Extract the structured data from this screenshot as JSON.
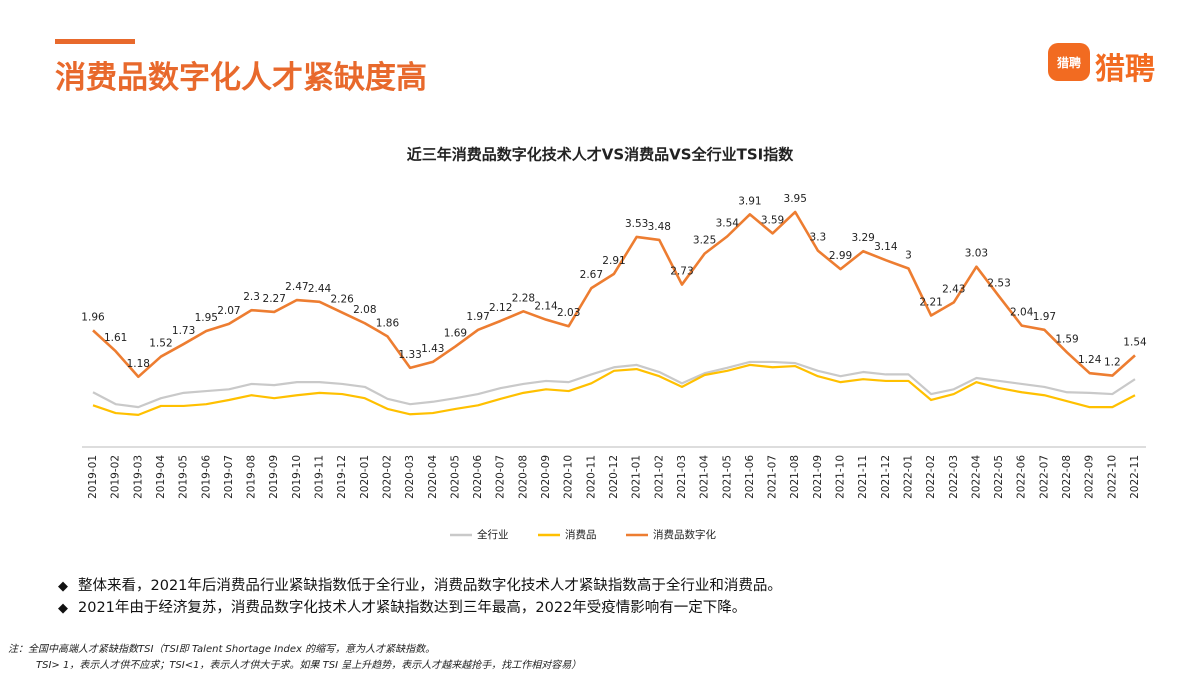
{
  "header": {
    "title": "消费品数字化人才紧缺度高"
  },
  "logo": {
    "icon_text": "猎聘",
    "brand": "猎聘"
  },
  "chart_data": {
    "type": "line",
    "title": "近三年消费品数字化技术人才VS消费品VS全行业TSI指数",
    "categories": [
      "2019-01",
      "2019-02",
      "2019-03",
      "2019-04",
      "2019-05",
      "2019-06",
      "2019-07",
      "2019-08",
      "2019-09",
      "2019-10",
      "2019-11",
      "2019-12",
      "2020-01",
      "2020-02",
      "2020-03",
      "2020-04",
      "2020-05",
      "2020-06",
      "2020-07",
      "2020-08",
      "2020-09",
      "2020-10",
      "2020-11",
      "2020-12",
      "2021-01",
      "2021-02",
      "2021-03",
      "2021-04",
      "2021-05",
      "2021-06",
      "2021-07",
      "2021-08",
      "2021-09",
      "2021-10",
      "2021-11",
      "2021-12",
      "2022-01",
      "2022-02",
      "2022-03",
      "2022-04",
      "2022-05",
      "2022-06",
      "2022-07",
      "2022-08",
      "2022-09",
      "2022-10",
      "2022-11"
    ],
    "ylim": [
      0,
      4
    ],
    "legend": "bottom",
    "series": [
      {
        "name": "全行业",
        "color": "#C9C9C9",
        "values": [
          0.92,
          0.72,
          0.67,
          0.82,
          0.91,
          0.94,
          0.97,
          1.06,
          1.04,
          1.09,
          1.09,
          1.06,
          1.01,
          0.81,
          0.72,
          0.76,
          0.82,
          0.89,
          0.99,
          1.06,
          1.11,
          1.09,
          1.22,
          1.34,
          1.38,
          1.26,
          1.07,
          1.24,
          1.33,
          1.43,
          1.43,
          1.41,
          1.28,
          1.19,
          1.26,
          1.22,
          1.22,
          0.89,
          0.97,
          1.16,
          1.11,
          1.06,
          1.01,
          0.92,
          0.91,
          0.89,
          1.14
        ]
      },
      {
        "name": "消费品",
        "color": "#FFC000",
        "values": [
          0.7,
          0.57,
          0.54,
          0.69,
          0.69,
          0.72,
          0.79,
          0.87,
          0.82,
          0.87,
          0.91,
          0.89,
          0.82,
          0.64,
          0.55,
          0.57,
          0.64,
          0.7,
          0.81,
          0.91,
          0.97,
          0.94,
          1.07,
          1.28,
          1.31,
          1.19,
          1.01,
          1.21,
          1.28,
          1.38,
          1.34,
          1.36,
          1.19,
          1.09,
          1.14,
          1.11,
          1.11,
          0.79,
          0.89,
          1.09,
          0.99,
          0.92,
          0.87,
          0.77,
          0.67,
          0.67,
          0.87
        ]
      },
      {
        "name": "消费品数字化",
        "color": "#ED7D31",
        "show_labels": true,
        "values": [
          1.96,
          1.61,
          1.18,
          1.52,
          1.73,
          1.95,
          2.07,
          2.3,
          2.27,
          2.47,
          2.44,
          2.26,
          2.08,
          1.86,
          1.33,
          1.43,
          1.69,
          1.97,
          2.12,
          2.28,
          2.14,
          2.03,
          2.67,
          2.91,
          3.53,
          3.48,
          2.73,
          3.25,
          3.54,
          3.91,
          3.59,
          3.95,
          3.3,
          2.99,
          3.29,
          3.14,
          3,
          2.21,
          2.43,
          3.03,
          2.53,
          2.04,
          1.97,
          1.59,
          1.24,
          1.2,
          1.54
        ]
      }
    ]
  },
  "bullets": [
    "整体来看，2021年后消费品行业紧缺指数低于全行业，消费品数字化技术人才紧缺指数高于全行业和消费品。",
    "2021年由于经济复苏，消费品数字化技术人才紧缺指数达到三年最高，2022年受疫情影响有一定下降。"
  ],
  "notes": [
    "注：全国中高端人才紧缺指数TSI（TSI即 Talent Shortage Index 的缩写，意为人才紧缺指数。",
    "TSI> 1，表示人才供不应求；TSI<1，表示人才供大于求。如果 TSI 呈上升趋势，表示人才越来越抢手，找工作相对容易）"
  ]
}
